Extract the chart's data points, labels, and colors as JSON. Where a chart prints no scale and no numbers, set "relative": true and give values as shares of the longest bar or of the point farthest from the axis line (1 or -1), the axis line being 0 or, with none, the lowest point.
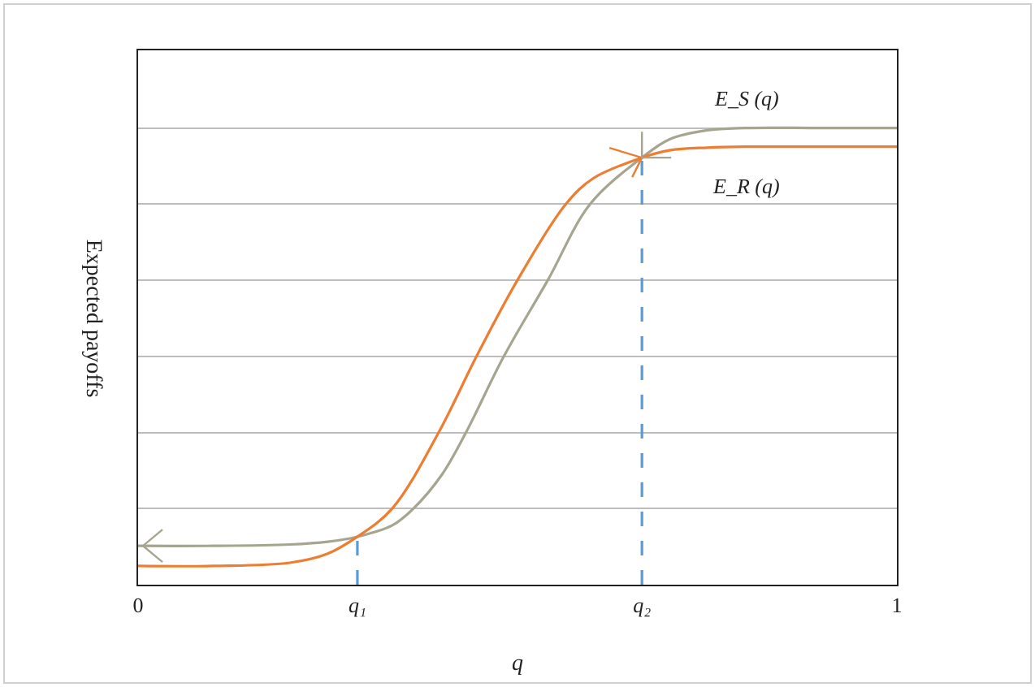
{
  "chart_data": {
    "type": "line",
    "relative": true,
    "xlabel": "q",
    "ylabel": "Expected payoffs",
    "xlim": [
      0,
      1
    ],
    "xticks": [
      0,
      {
        "value": 0.289,
        "label": "q₁"
      },
      {
        "value": 0.664,
        "label": "q₂"
      },
      1
    ],
    "grid": "y",
    "marker": "none",
    "line_style": "solid",
    "series": [
      {
        "name": "E_S (q)",
        "color": "#a5a590",
        "x": [
          0,
          0.1,
          0.2,
          0.25,
          0.289,
          0.335,
          0.363,
          0.4,
          0.432,
          0.482,
          0.54,
          0.596,
          0.664,
          0.7,
          0.75,
          0.8,
          0.9,
          1
        ],
        "values": [
          0.085,
          0.085,
          0.088,
          0.094,
          0.105,
          0.13,
          0.167,
          0.24,
          0.333,
          0.5,
          0.667,
          0.834,
          0.935,
          0.975,
          0.995,
          1,
          1,
          1
        ]
      },
      {
        "name": "E_R (q)",
        "color": "#ed7d31",
        "x": [
          0,
          0.1,
          0.2,
          0.25,
          0.289,
          0.335,
          0.396,
          0.446,
          0.5,
          0.564,
          0.6,
          0.664,
          0.7,
          0.75,
          0.8,
          0.9,
          1
        ],
        "values": [
          0.041,
          0.041,
          0.048,
          0.068,
          0.105,
          0.167,
          0.333,
          0.5,
          0.667,
          0.834,
          0.89,
          0.935,
          0.951,
          0.957,
          0.959,
          0.959,
          0.959
        ]
      }
    ],
    "ref_lines": [
      {
        "axis": "x",
        "value": 0.289,
        "color": "#5b9bd5",
        "line_style": "dashed"
      },
      {
        "axis": "x",
        "value": 0.664,
        "color": "#5b9bd5",
        "line_style": "dashed"
      }
    ]
  }
}
